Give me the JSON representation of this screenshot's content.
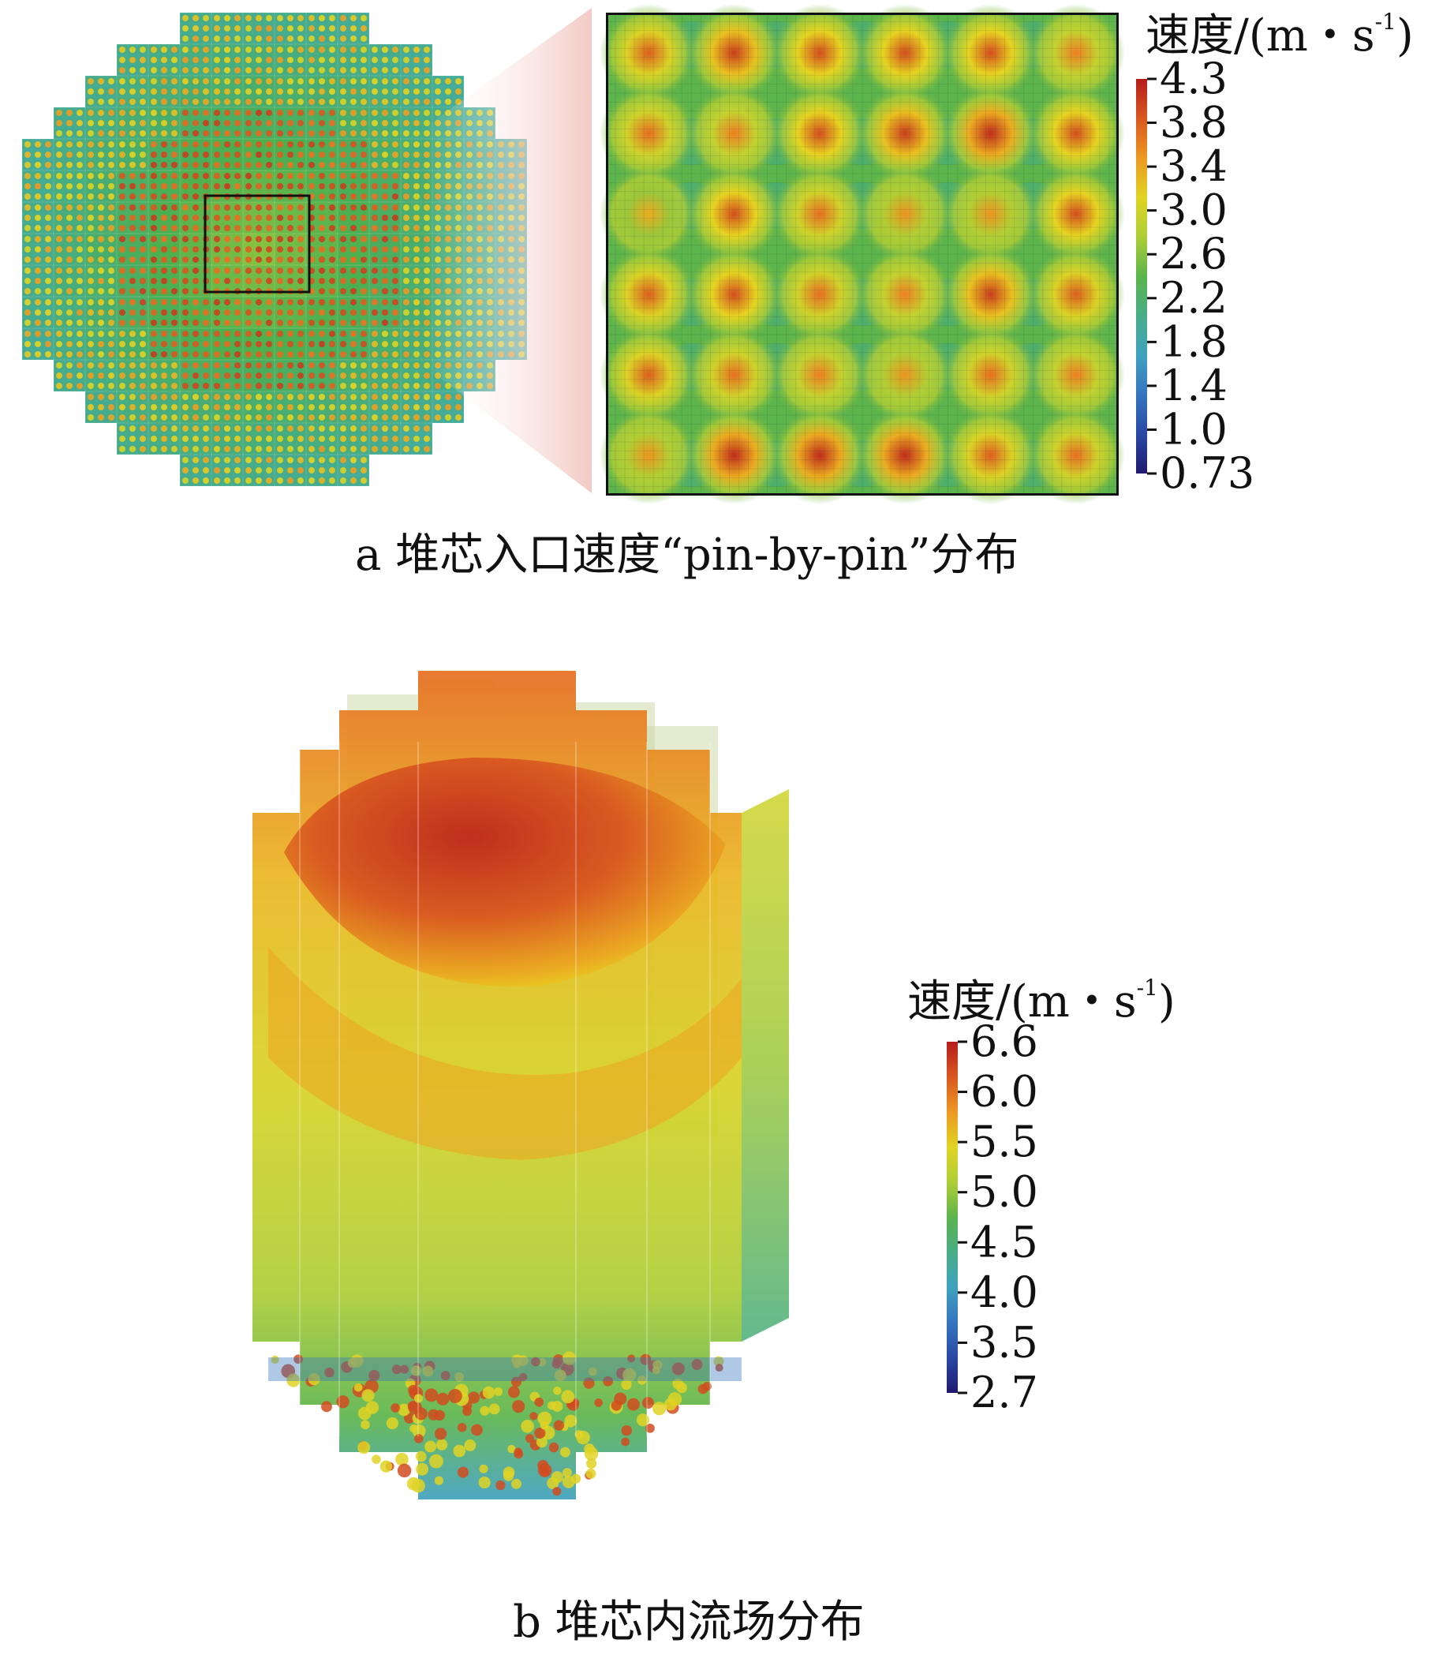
{
  "colors": {
    "jet_low": "#1f1a6e",
    "jet_blue": "#2e5fc0",
    "jet_green": "#4caf50",
    "jet_yellow": "#e8d420",
    "jet_orange": "#ee7a22",
    "jet_red": "#b51c1c",
    "inset_box": "#111111",
    "zoom_wedge": "#f2c6c0"
  },
  "panel_a": {
    "caption": "a  堆芯入口速度“pin-by-pin”分布",
    "colorbar": {
      "title_main": "速度/(m・s",
      "title_sup": "-1",
      "title_close": ")",
      "ticks": [
        "4.3",
        "3.8",
        "3.4",
        "3.0",
        "2.6",
        "2.2",
        "1.8",
        "1.4",
        "1.0",
        "0.73"
      ],
      "range": [
        0.73,
        4.3
      ]
    },
    "zoom_peaks": [
      [
        3.9,
        4.1,
        4.0,
        4.0,
        4.0,
        3.7
      ],
      [
        3.8,
        3.7,
        4.0,
        4.1,
        4.2,
        4.0
      ],
      [
        3.5,
        4.0,
        3.8,
        3.6,
        3.6,
        4.0
      ],
      [
        3.9,
        4.0,
        3.8,
        3.7,
        4.1,
        3.9
      ],
      [
        3.9,
        3.8,
        3.7,
        3.6,
        3.8,
        3.7
      ],
      [
        3.6,
        4.2,
        4.2,
        4.2,
        3.9,
        3.8
      ]
    ]
  },
  "panel_b": {
    "caption": "b  堆芯内流场分布",
    "colorbar": {
      "title_main": "速度/(m・s",
      "title_sup": "-1",
      "title_close": ")",
      "ticks": [
        "6.6",
        "6.0",
        "5.5",
        "5.0",
        "4.5",
        "4.0",
        "3.5",
        "2.7"
      ],
      "range": [
        2.7,
        6.6
      ]
    }
  }
}
